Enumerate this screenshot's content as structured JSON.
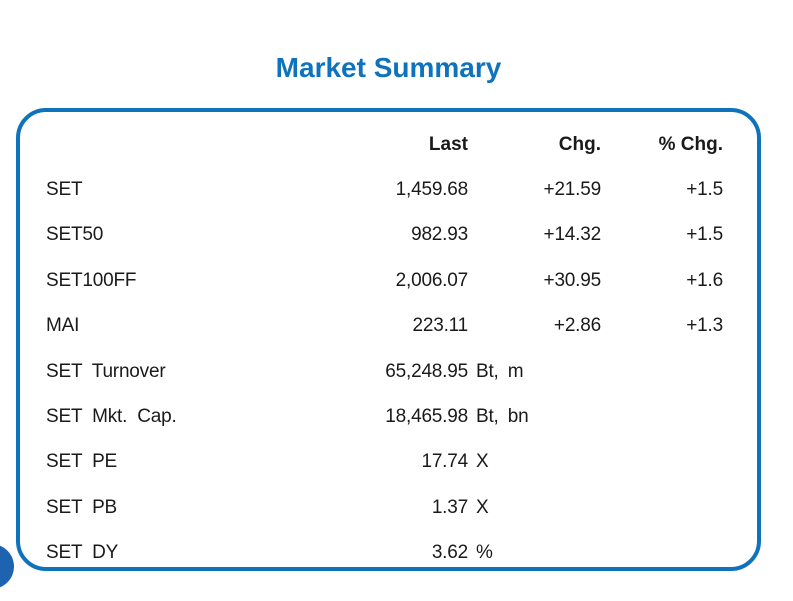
{
  "title": "Market Summary",
  "colors": {
    "accent": "#0e72bd",
    "dot": "#1e63b0",
    "text": "#1a1a1a"
  },
  "table": {
    "headers": {
      "last": "Last",
      "chg": "Chg.",
      "pct_chg": "% Chg."
    },
    "rows": [
      {
        "label": "SET",
        "last": "1,459.68",
        "unit": "",
        "chg": "+21.59",
        "pct": "+1.5"
      },
      {
        "label": "SET50",
        "last": "982.93",
        "unit": "",
        "chg": "+14.32",
        "pct": "+1.5"
      },
      {
        "label": "SET100FF",
        "last": "2,006.07",
        "unit": "",
        "chg": "+30.95",
        "pct": "+1.6"
      },
      {
        "label": "MAI",
        "last": "223.11",
        "unit": "",
        "chg": "+2.86",
        "pct": "+1.3"
      },
      {
        "label": "SET Turnover",
        "last": "65,248.95",
        "unit": "Bt, m",
        "chg": "",
        "pct": ""
      },
      {
        "label": "SET Mkt. Cap.",
        "last": "18,465.98",
        "unit": "Bt, bn",
        "chg": "",
        "pct": ""
      },
      {
        "label": "SET PE",
        "last": "17.74",
        "unit": "X",
        "chg": "",
        "pct": ""
      },
      {
        "label": "SET PB",
        "last": "1.37",
        "unit": "X",
        "chg": "",
        "pct": ""
      },
      {
        "label": "SET DY",
        "last": "3.62",
        "unit": "%",
        "chg": "",
        "pct": ""
      }
    ]
  }
}
